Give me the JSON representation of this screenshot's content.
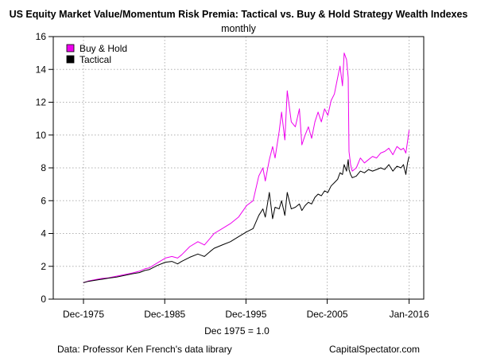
{
  "colors": {
    "buy_hold": "#ee00ee",
    "tactical": "#000000",
    "grid": "#b0b0b0",
    "axis": "#000000"
  },
  "footer": {
    "source": "Data: Professor Ken French's data library",
    "site": "CapitalSpectator.com"
  },
  "chart_data": {
    "type": "line",
    "title": "US Equity Market Value/Momentum Risk Premia: Tactical vs. Buy & Hold Strategy Wealth Indexes",
    "subtitle": "monthly",
    "xlabel": "Dec 1975 = 1.0",
    "ylabel": "",
    "xlim": [
      1972.2,
      2017.8
    ],
    "ylim": [
      0,
      16
    ],
    "y_ticks": [
      0,
      2,
      4,
      6,
      8,
      10,
      12,
      14,
      16
    ],
    "x_ticks": [
      {
        "value": 1975.92,
        "label": "Dec-1975"
      },
      {
        "value": 1985.92,
        "label": "Dec-1985"
      },
      {
        "value": 1995.92,
        "label": "Dec-1995"
      },
      {
        "value": 2005.92,
        "label": "Dec-2005"
      },
      {
        "value": 2016.0,
        "label": "Jan-2016"
      }
    ],
    "grid": true,
    "legend": "top-left",
    "series": [
      {
        "name": "Buy & Hold",
        "x": [
          1975.9,
          1976.5,
          1977.0,
          1978.0,
          1979.0,
          1980.0,
          1981.0,
          1982.0,
          1982.8,
          1983.5,
          1984.0,
          1985.0,
          1986.0,
          1986.8,
          1987.5,
          1988.0,
          1989.0,
          1990.0,
          1990.8,
          1991.5,
          1992.0,
          1993.0,
          1994.0,
          1995.0,
          1996.0,
          1996.8,
          1997.5,
          1998.0,
          1998.3,
          1998.8,
          1999.2,
          1999.5,
          2000.0,
          2000.3,
          2000.7,
          2001.0,
          2001.5,
          2002.0,
          2002.5,
          2002.8,
          2003.2,
          2003.6,
          2004.0,
          2004.4,
          2004.8,
          2005.2,
          2005.6,
          2006.0,
          2006.4,
          2006.8,
          2007.2,
          2007.5,
          2007.8,
          2008.0,
          2008.3,
          2008.5,
          2008.6,
          2008.8,
          2009.0,
          2009.5,
          2010.0,
          2010.5,
          2011.0,
          2011.5,
          2012.0,
          2012.5,
          2013.0,
          2013.5,
          2014.0,
          2014.5,
          2015.0,
          2015.3,
          2015.6,
          2015.8,
          2016.0
        ],
        "values": [
          1.0,
          1.1,
          1.15,
          1.25,
          1.3,
          1.4,
          1.5,
          1.6,
          1.7,
          1.85,
          1.9,
          2.2,
          2.5,
          2.6,
          2.5,
          2.7,
          3.2,
          3.5,
          3.3,
          3.7,
          4.0,
          4.3,
          4.6,
          5.0,
          5.7,
          6.0,
          7.5,
          8.0,
          7.2,
          8.5,
          9.3,
          8.6,
          10.2,
          11.4,
          9.7,
          12.7,
          10.8,
          10.5,
          11.6,
          9.4,
          10.0,
          10.5,
          9.8,
          10.8,
          11.4,
          10.8,
          11.6,
          11.2,
          12.1,
          12.5,
          13.5,
          14.2,
          13.0,
          15.0,
          14.6,
          13.5,
          9.0,
          8.2,
          7.8,
          8.0,
          8.6,
          8.3,
          8.5,
          8.7,
          8.6,
          8.9,
          9.0,
          9.2,
          8.8,
          9.3,
          9.1,
          9.2,
          8.9,
          9.6,
          10.3
        ]
      },
      {
        "name": "Tactical",
        "x": [
          1975.9,
          1976.5,
          1977.0,
          1978.0,
          1979.0,
          1980.0,
          1981.0,
          1982.0,
          1982.8,
          1983.5,
          1984.0,
          1985.0,
          1986.0,
          1986.8,
          1987.5,
          1988.0,
          1989.0,
          1990.0,
          1990.8,
          1991.5,
          1992.0,
          1993.0,
          1994.0,
          1995.0,
          1996.0,
          1996.8,
          1997.5,
          1998.0,
          1998.3,
          1998.8,
          1999.2,
          1999.5,
          2000.0,
          2000.3,
          2000.7,
          2001.0,
          2001.5,
          2002.0,
          2002.5,
          2002.8,
          2003.2,
          2003.6,
          2004.0,
          2004.4,
          2004.8,
          2005.2,
          2005.6,
          2006.0,
          2006.4,
          2006.8,
          2007.2,
          2007.5,
          2007.8,
          2008.0,
          2008.3,
          2008.5,
          2008.6,
          2008.8,
          2009.0,
          2009.5,
          2010.0,
          2010.5,
          2011.0,
          2011.5,
          2012.0,
          2012.5,
          2013.0,
          2013.5,
          2014.0,
          2014.5,
          2015.0,
          2015.3,
          2015.6,
          2015.8,
          2016.0
        ],
        "values": [
          1.0,
          1.08,
          1.12,
          1.2,
          1.28,
          1.35,
          1.45,
          1.55,
          1.62,
          1.75,
          1.8,
          2.05,
          2.25,
          2.3,
          2.15,
          2.3,
          2.55,
          2.75,
          2.6,
          2.9,
          3.1,
          3.3,
          3.5,
          3.8,
          4.1,
          4.3,
          5.1,
          5.5,
          5.0,
          6.5,
          4.9,
          5.6,
          5.5,
          6.0,
          5.1,
          6.5,
          5.5,
          5.6,
          5.8,
          5.4,
          5.7,
          5.9,
          5.8,
          6.2,
          6.4,
          6.3,
          6.6,
          6.5,
          6.9,
          7.1,
          7.3,
          7.7,
          7.6,
          8.2,
          7.8,
          8.5,
          7.9,
          7.6,
          7.4,
          7.5,
          7.8,
          7.7,
          7.9,
          7.8,
          7.9,
          8.0,
          7.9,
          8.2,
          7.8,
          8.1,
          8.0,
          8.2,
          7.6,
          8.3,
          8.7
        ]
      }
    ]
  }
}
